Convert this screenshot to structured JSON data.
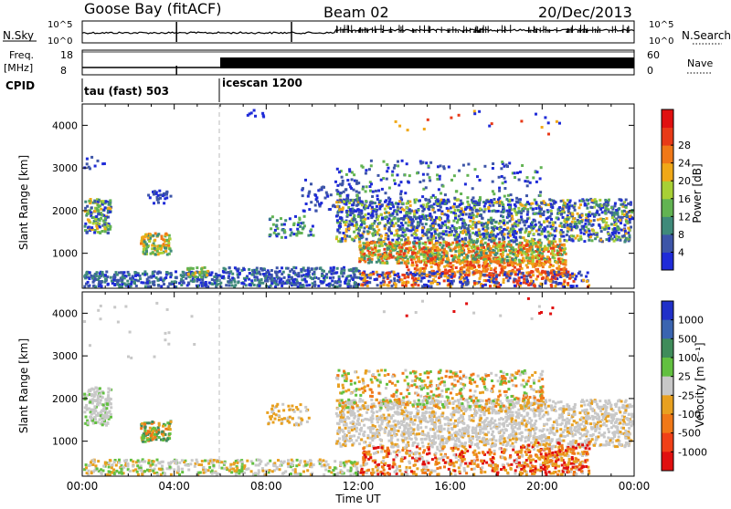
{
  "header": {
    "station": "Goose Bay (fitACF)",
    "beam": "Beam 02",
    "date": "20/Dec/2013"
  },
  "top_strip": {
    "nsky_label": "N.Sky",
    "nsky_ticks": [
      "10^5",
      "10^0"
    ],
    "nsearch_label": "N.Search",
    "nsearch_ticks": [
      "10^5",
      "10^0"
    ],
    "freq_label_1": "Freq.",
    "freq_label_2": "[MHz]",
    "freq_ticks": [
      "18",
      "8"
    ],
    "nave_label": "Nave",
    "nave_ticks": [
      "60",
      "0"
    ],
    "cpid_label": "CPID",
    "cpid_segments": [
      {
        "name": "tau (fast) 503",
        "start_hour": 0
      },
      {
        "name": "icescan 1200",
        "start_hour": 6
      }
    ]
  },
  "chart_data": [
    {
      "type": "heatmap",
      "title": "",
      "xlabel": "",
      "ylabel": "Slant Range [km]",
      "x_range_hours": [
        0,
        24
      ],
      "ylim": [
        180,
        4500
      ],
      "y_ticks": [
        1000,
        2000,
        3000,
        4000
      ],
      "colorbar": {
        "label": "Power [dB]",
        "ticks": [
          "4",
          "8",
          "12",
          "16",
          "20",
          "24",
          "28"
        ],
        "colors": [
          "#1f2bd8",
          "#3d55a8",
          "#3f8a7a",
          "#62b352",
          "#a8d035",
          "#f0a818",
          "#f07818",
          "#e83a18",
          "#e01010"
        ]
      }
    },
    {
      "type": "heatmap",
      "title": "",
      "xlabel": "Time UT",
      "ylabel": "Slant Range [km]",
      "x_range_hours": [
        0,
        24
      ],
      "ylim": [
        180,
        4500
      ],
      "y_ticks": [
        1000,
        2000,
        3000,
        4000
      ],
      "x_ticks": [
        "00:00",
        "04:00",
        "08:00",
        "12:00",
        "16:00",
        "20:00",
        "00:00"
      ],
      "colorbar": {
        "label": "Velocity [m s⁻¹]",
        "ticks": [
          "1000",
          "500",
          "100",
          "25",
          "-25",
          "-100",
          "-500",
          "-1000"
        ],
        "colors": [
          "#2030c8",
          "#3a64b0",
          "#3f8c5a",
          "#62c040",
          "#c8c8c8",
          "#e8a020",
          "#f07818",
          "#f04018",
          "#e01010"
        ]
      }
    }
  ]
}
